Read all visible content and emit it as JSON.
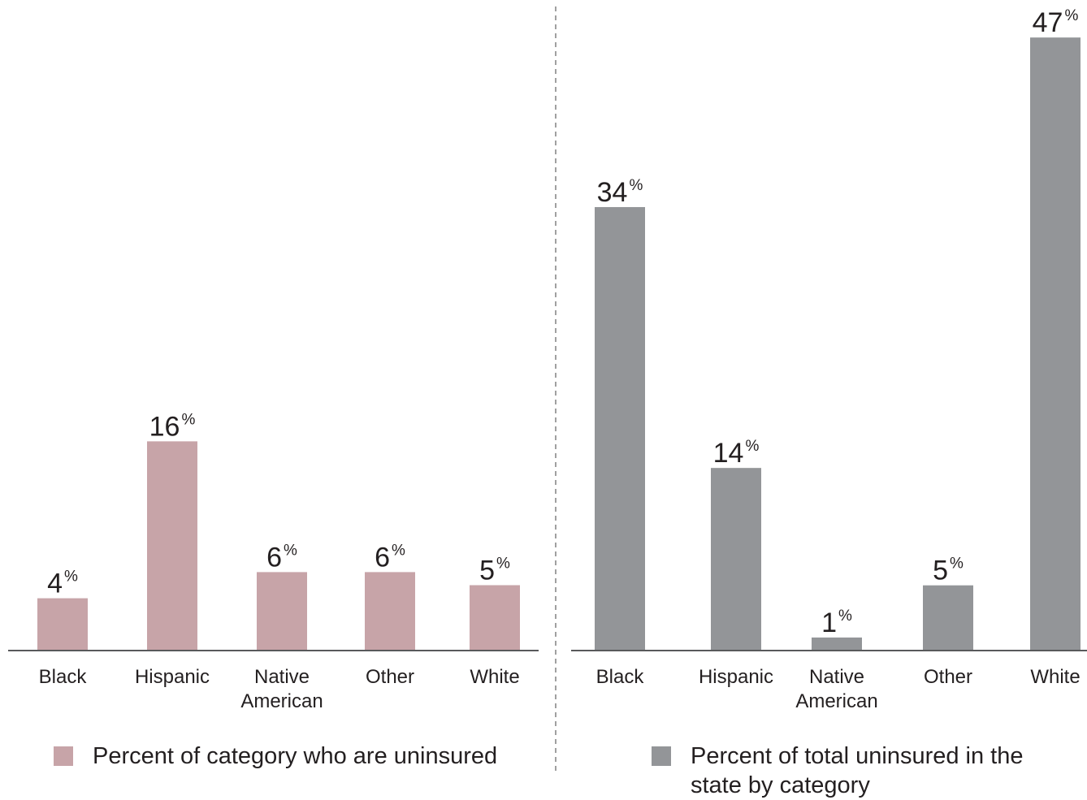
{
  "chart_data": [
    {
      "type": "bar",
      "categories": [
        "Black",
        "Hispanic",
        "Native\nAmerican",
        "Other",
        "White"
      ],
      "series": [
        {
          "name": "Percent of category who are uninsured",
          "values": [
            4,
            16,
            6,
            6,
            5
          ]
        }
      ],
      "value_labels": [
        "4",
        "16",
        "6",
        "6",
        "5"
      ],
      "unit_suffix": "%",
      "color": "#c7a4a8",
      "legend": "bottom",
      "grid": false
    },
    {
      "type": "bar",
      "categories": [
        "Black",
        "Hispanic",
        "Native\nAmerican",
        "Other",
        "White"
      ],
      "series": [
        {
          "name": "Percent of total uninsured in the state by category",
          "values": [
            34,
            14,
            1,
            5,
            47
          ]
        }
      ],
      "value_labels": [
        "34",
        "14",
        "1",
        "5",
        "47"
      ],
      "unit_suffix": "%",
      "color": "#939598",
      "legend": "bottom",
      "grid": false
    }
  ],
  "legend": {
    "left": {
      "label": "Percent of category who are uninsured",
      "color": "#c7a4a8"
    },
    "right": {
      "label": "Percent of total uninsured in the state by category",
      "color": "#939598"
    }
  },
  "divider_color": "#808080",
  "axis_color": "#58595b"
}
